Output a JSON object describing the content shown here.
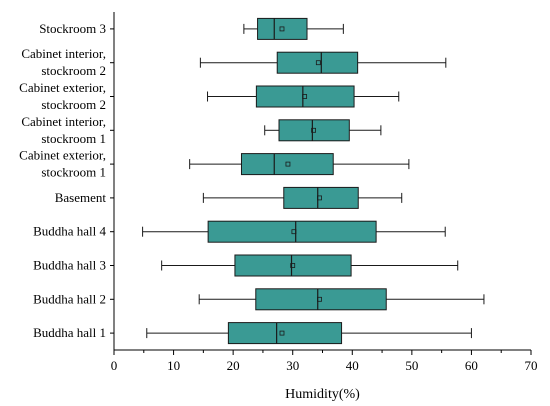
{
  "colors": {
    "box_fill": "#3a9a94",
    "box_stroke": "#1a1a1a",
    "axis": "#000000",
    "mean_marker": "#1a1a1a"
  },
  "chart_data": {
    "type": "boxplot",
    "orientation": "horizontal",
    "title": "",
    "xlabel": "Humidity(%)",
    "ylabel": "",
    "xlim": [
      0,
      70
    ],
    "xticks": [
      0,
      10,
      20,
      30,
      40,
      50,
      60,
      70
    ],
    "grid": false,
    "legend": "none",
    "categories": [
      {
        "label": [
          "Buddha hall 1"
        ],
        "min": 5.5,
        "q1": 19.2,
        "median": 27.3,
        "q3": 38.2,
        "max": 60.0,
        "mean": 28.2
      },
      {
        "label": [
          "Buddha hall 2"
        ],
        "min": 14.3,
        "q1": 23.8,
        "median": 34.2,
        "q3": 45.7,
        "max": 62.1,
        "mean": 34.5
      },
      {
        "label": [
          "Buddha hall 3"
        ],
        "min": 8.0,
        "q1": 20.3,
        "median": 29.8,
        "q3": 39.8,
        "max": 57.7,
        "mean": 30.0
      },
      {
        "label": [
          "Buddha hall 4"
        ],
        "min": 4.8,
        "q1": 15.8,
        "median": 30.5,
        "q3": 44.0,
        "max": 55.6,
        "mean": 30.2
      },
      {
        "label": [
          "Basement"
        ],
        "min": 15.0,
        "q1": 28.5,
        "median": 34.2,
        "q3": 41.0,
        "max": 48.3,
        "mean": 34.5
      },
      {
        "label": [
          "Cabinet exterior,",
          "stockroom 1"
        ],
        "min": 12.7,
        "q1": 21.4,
        "median": 26.9,
        "q3": 36.8,
        "max": 49.5,
        "mean": 29.2
      },
      {
        "label": [
          "Cabinet interior,",
          "stockroom 1"
        ],
        "min": 25.3,
        "q1": 27.7,
        "median": 33.3,
        "q3": 39.5,
        "max": 44.8,
        "mean": 33.5
      },
      {
        "label": [
          "Cabinet exterior,",
          "stockroom 2"
        ],
        "min": 15.7,
        "q1": 23.9,
        "median": 31.7,
        "q3": 40.3,
        "max": 47.8,
        "mean": 32.0
      },
      {
        "label": [
          "Cabinet interior,",
          "stockroom 2"
        ],
        "min": 14.5,
        "q1": 27.4,
        "median": 34.8,
        "q3": 40.9,
        "max": 55.7,
        "mean": 34.3
      },
      {
        "label": [
          "Stockroom 3"
        ],
        "min": 21.8,
        "q1": 24.1,
        "median": 26.9,
        "q3": 32.4,
        "max": 38.5,
        "mean": 28.2
      }
    ]
  }
}
